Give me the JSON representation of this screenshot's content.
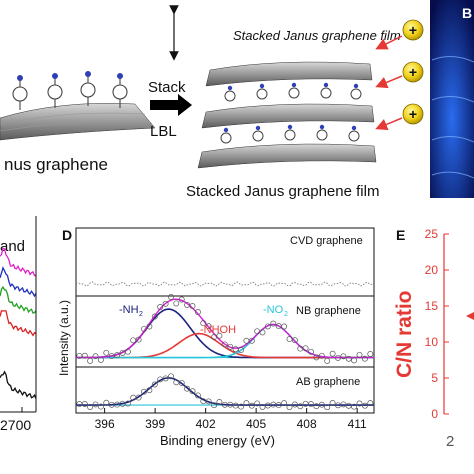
{
  "top": {
    "left_caption": "nus graphene",
    "stack_label": "Stack",
    "lbl_label": "LBL",
    "film_title": "Stacked Janus graphene film",
    "film_caption": "Stacked Janus graphene film",
    "ion_symbol": "+",
    "corner_letter": "B"
  },
  "panel_c": {
    "band_label": "and",
    "tick_2700": "2700",
    "series_colors": [
      "#e020c8",
      "#2030c0",
      "#20a020",
      "#e02020",
      "#111111"
    ]
  },
  "panel_d": {
    "letter": "D",
    "ylabel": "Intensity (a.u.)",
    "xlabel": "Binding energy (eV)",
    "xticks": [
      "396",
      "399",
      "402",
      "405",
      "408",
      "411"
    ],
    "sub_titles": [
      "CVD graphene",
      "NB graphene",
      "AB graphene"
    ],
    "peak_labels": {
      "nh2": "-NH",
      "nh2_sub": "2",
      "nhoh": "-NHOH",
      "no2": "-NO",
      "no2_sub": "2"
    },
    "colors": {
      "nh2": "#1a237e",
      "nhoh": "#e53935",
      "no2": "#26c6da",
      "envelope": "#d81bd8",
      "background": "#777777"
    }
  },
  "panel_e": {
    "letter": "E",
    "ylabel": "C/N ratio",
    "yticks": [
      "25",
      "20",
      "15",
      "10",
      "5",
      "0"
    ],
    "xtick_partial": "2",
    "color": "#e53935"
  },
  "chart_data": [
    {
      "type": "line",
      "panel": "D",
      "xlabel": "Binding energy (eV)",
      "ylabel": "Intensity (a.u.)",
      "xlim": [
        394.3,
        412
      ],
      "subplots": [
        {
          "title": "CVD graphene",
          "series": [
            {
              "x": [
                394.5,
                396,
                398,
                400,
                402,
                404,
                406,
                408,
                410,
                412
              ],
              "y": [
                0.12,
                0.1,
                0.14,
                0.11,
                0.13,
                0.12,
                0.1,
                0.13,
                0.11,
                0.12
              ]
            }
          ]
        },
        {
          "title": "NB graphene",
          "series": [
            {
              "name": "-NH2",
              "center": 399.8,
              "height": 0.85,
              "width": 1.3
            },
            {
              "name": "-NHOH",
              "center": 401.6,
              "height": 0.42,
              "width": 1.2
            },
            {
              "name": "-NO2",
              "center": 406.0,
              "height": 0.58,
              "width": 1.1
            }
          ]
        },
        {
          "title": "AB graphene",
          "series": [
            {
              "name": "-NH2",
              "center": 399.8,
              "height": 0.85,
              "width": 1.15
            }
          ]
        }
      ]
    }
  ]
}
